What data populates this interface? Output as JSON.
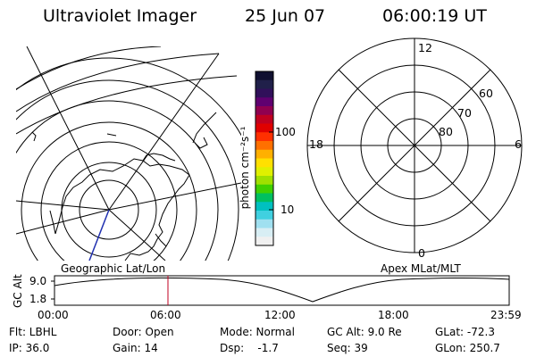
{
  "header": {
    "instrument": "Ultraviolet Imager",
    "date": "25 Jun 07",
    "time": "06:00:19 UT"
  },
  "geo_panel": {
    "label": "Geographic Lat/Lon"
  },
  "apex_panel": {
    "label": "Apex MLat/MLT",
    "mlt_labels": [
      "12",
      "6",
      "0",
      "18"
    ],
    "lat_labels": [
      "60",
      "70",
      "80"
    ]
  },
  "colorbar": {
    "unit_label": "photon cm⁻²s⁻¹",
    "tick_labels": [
      "100",
      "10"
    ],
    "colors": [
      "#101030",
      "#20204a",
      "#30105a",
      "#600070",
      "#900050",
      "#c00020",
      "#e00000",
      "#ff3000",
      "#ff7000",
      "#ffb000",
      "#ffe000",
      "#e0f000",
      "#a0e000",
      "#40d000",
      "#00c060",
      "#00c0c0",
      "#40d0e0",
      "#a0e0f0",
      "#d8eef4",
      "#f0f0f0"
    ]
  },
  "timeline": {
    "y_label": "GC Alt",
    "y_ticks": [
      "9.0",
      "1.8"
    ],
    "x_ticks": [
      "00:00",
      "06:00",
      "12:00",
      "18:00",
      "23:59"
    ],
    "current_time": "06:00"
  },
  "footer": {
    "flt": "Flt: LBHL",
    "ip": "IP: 36.0",
    "door": "Door: Open",
    "gain": "Gain: 14",
    "mode": "Mode: Normal",
    "dsp": "Dsp:    -1.7",
    "gc_alt": "GC Alt: 9.0 Re",
    "seq": "Seq: 39",
    "glat": "GLat: -72.3",
    "glon": "GLon: 250.7"
  }
}
